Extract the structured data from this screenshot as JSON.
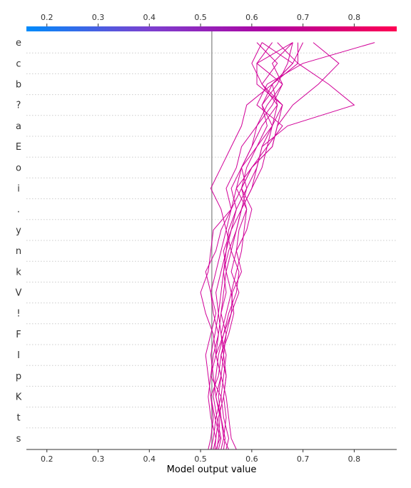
{
  "chart_data": {
    "type": "line",
    "subtype": "shap-decision-plot",
    "xlabel": "Model output value",
    "xlim": [
      0.16,
      0.883
    ],
    "x_ticks": [
      0.2,
      0.3,
      0.4,
      0.5,
      0.6,
      0.7,
      0.8
    ],
    "x_tick_labels": [
      "0.2",
      "0.3",
      "0.4",
      "0.5",
      "0.6",
      "0.7",
      "0.8"
    ],
    "base_value": 0.522,
    "features": [
      "e",
      "c",
      "b",
      "?",
      "a",
      "E",
      "o",
      "i",
      ".",
      "y",
      "n",
      "k",
      "V",
      "!",
      "F",
      "I",
      "p",
      "K",
      "t",
      "s"
    ],
    "colorbar": {
      "position": "top",
      "colors": [
        "#008bfb",
        "#7b40d0",
        "#b000a0",
        "#ff0052"
      ]
    },
    "line_color": "#d10098",
    "grid": "dotted-horizontal",
    "series": [
      {
        "values": [
          0.53,
          0.538,
          0.528,
          0.52,
          0.535,
          0.54,
          0.55,
          0.56,
          0.562,
          0.58,
          0.57,
          0.575,
          0.59,
          0.58,
          0.6,
          0.63,
          0.66,
          0.61,
          0.63,
          0.7,
          0.84
        ]
      },
      {
        "values": [
          0.52,
          0.525,
          0.53,
          0.54,
          0.52,
          0.53,
          0.525,
          0.51,
          0.5,
          0.515,
          0.52,
          0.525,
          0.56,
          0.58,
          0.6,
          0.64,
          0.65,
          0.68,
          0.73,
          0.77,
          0.72
        ]
      },
      {
        "values": [
          0.545,
          0.548,
          0.54,
          0.535,
          0.54,
          0.545,
          0.55,
          0.54,
          0.545,
          0.55,
          0.56,
          0.57,
          0.58,
          0.6,
          0.61,
          0.62,
          0.67,
          0.8,
          0.75,
          0.69,
          0.69
        ]
      },
      {
        "values": [
          0.535,
          0.54,
          0.532,
          0.525,
          0.53,
          0.535,
          0.545,
          0.56,
          0.575,
          0.56,
          0.57,
          0.59,
          0.6,
          0.58,
          0.59,
          0.61,
          0.64,
          0.62,
          0.65,
          0.67,
          0.68
        ]
      },
      {
        "values": [
          0.525,
          0.53,
          0.52,
          0.515,
          0.52,
          0.525,
          0.535,
          0.54,
          0.55,
          0.545,
          0.555,
          0.57,
          0.58,
          0.6,
          0.62,
          0.63,
          0.64,
          0.65,
          0.64,
          0.68,
          0.62
        ]
      },
      {
        "values": [
          0.54,
          0.545,
          0.54,
          0.53,
          0.54,
          0.53,
          0.535,
          0.525,
          0.52,
          0.51,
          0.53,
          0.54,
          0.56,
          0.57,
          0.6,
          0.64,
          0.65,
          0.66,
          0.62,
          0.65,
          0.61
        ]
      },
      {
        "values": [
          0.55,
          0.555,
          0.545,
          0.54,
          0.545,
          0.55,
          0.54,
          0.535,
          0.53,
          0.54,
          0.55,
          0.56,
          0.57,
          0.59,
          0.61,
          0.62,
          0.64,
          0.66,
          0.61,
          0.61,
          0.64
        ]
      },
      {
        "values": [
          0.515,
          0.52,
          0.525,
          0.52,
          0.515,
          0.51,
          0.52,
          0.53,
          0.52,
          0.53,
          0.54,
          0.55,
          0.56,
          0.55,
          0.57,
          0.58,
          0.61,
          0.64,
          0.66,
          0.64,
          0.68
        ]
      },
      {
        "values": [
          0.555,
          0.545,
          0.55,
          0.545,
          0.55,
          0.54,
          0.555,
          0.565,
          0.56,
          0.57,
          0.58,
          0.585,
          0.59,
          0.57,
          0.58,
          0.6,
          0.62,
          0.65,
          0.62,
          0.6,
          0.62
        ]
      },
      {
        "values": [
          0.57,
          0.56,
          0.555,
          0.55,
          0.54,
          0.53,
          0.545,
          0.555,
          0.57,
          0.575,
          0.56,
          0.55,
          0.54,
          0.52,
          0.54,
          0.56,
          0.58,
          0.59,
          0.64,
          0.69,
          0.65
        ]
      },
      {
        "values": [
          0.532,
          0.535,
          0.538,
          0.53,
          0.525,
          0.52,
          0.528,
          0.535,
          0.54,
          0.545,
          0.55,
          0.555,
          0.57,
          0.56,
          0.58,
          0.6,
          0.61,
          0.63,
          0.66,
          0.61,
          0.68
        ]
      },
      {
        "values": [
          0.528,
          0.53,
          0.535,
          0.545,
          0.55,
          0.545,
          0.54,
          0.55,
          0.56,
          0.55,
          0.545,
          0.56,
          0.58,
          0.59,
          0.58,
          0.61,
          0.63,
          0.62,
          0.64,
          0.68,
          0.7
        ]
      }
    ]
  }
}
